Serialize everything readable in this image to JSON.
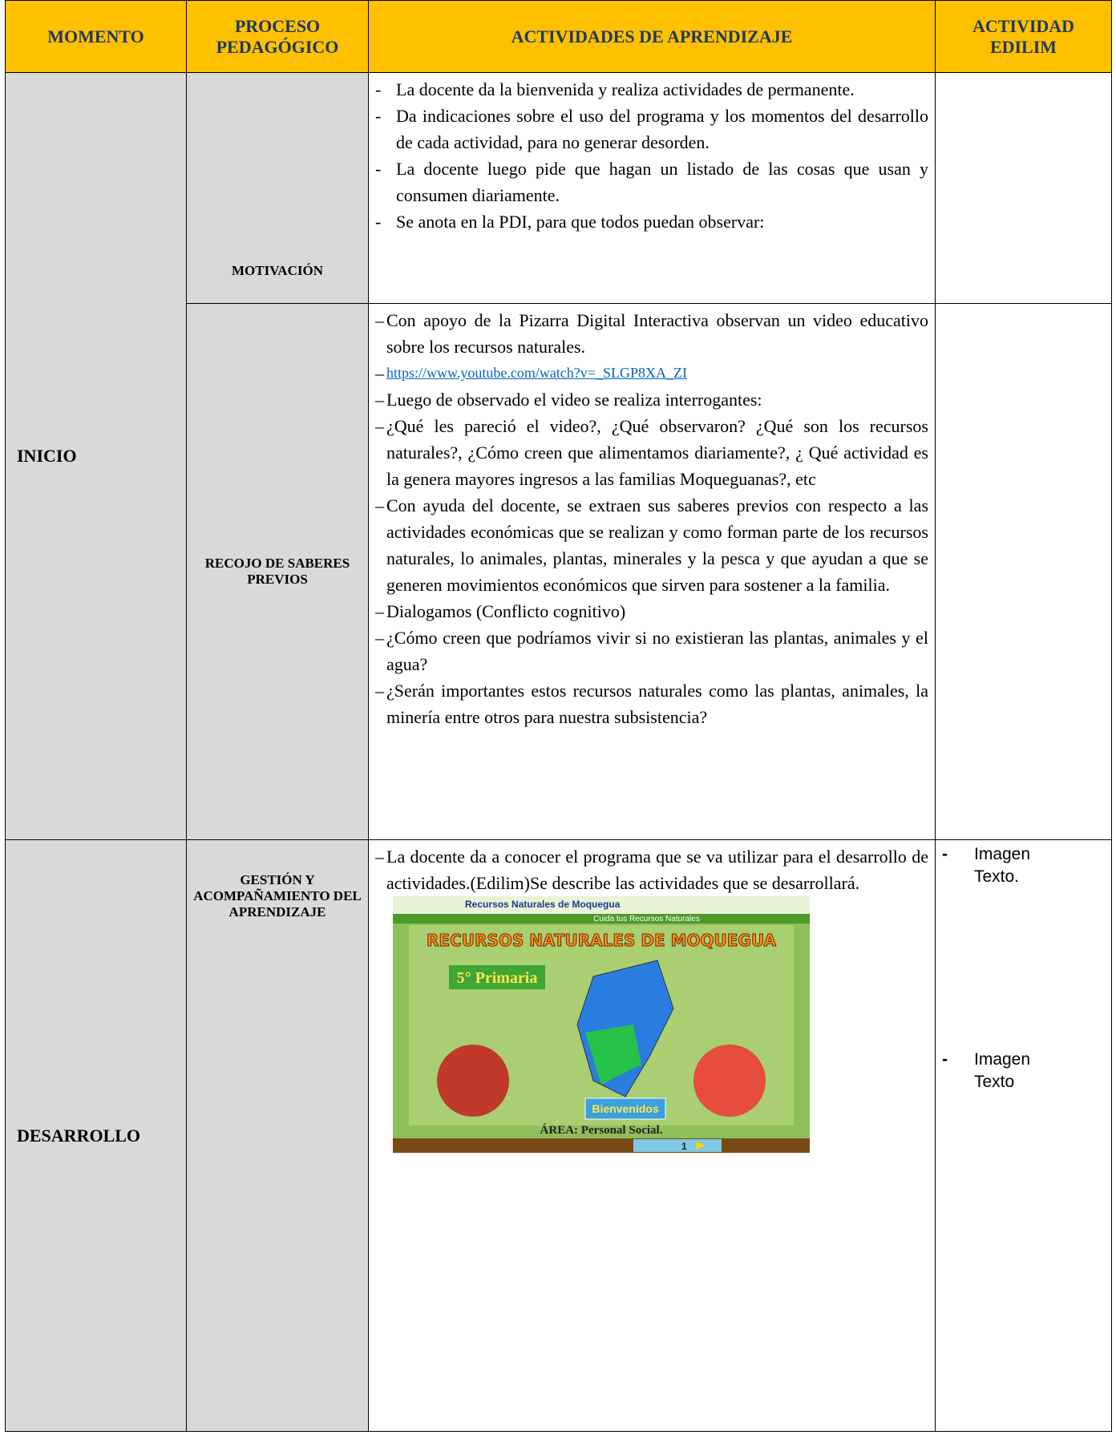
{
  "table": {
    "headers": [
      "MOMENTO",
      "PROCESO PEDAGÓGICO",
      "ACTIVIDADES DE APRENDIZAJE",
      "ACTIVIDAD EDILIM"
    ],
    "rows": [
      {
        "momento": "INICIO",
        "proceso": "MOTIVACIÓN",
        "marker": "-",
        "actividades": [
          "La docente da la bienvenida y realiza actividades de permanente.",
          "Da indicaciones sobre el uso del programa y los momentos del desarrollo de cada actividad, para no generar desorden.",
          "La docente luego pide que hagan un listado de las cosas que usan y consumen diariamente.",
          "Se anota en la PDI, para que todos puedan observar:"
        ]
      },
      {
        "proceso": "RECOJO DE SABERES PREVIOS",
        "marker": "–",
        "link": "https://www.youtube.com/watch?v=_SLGP8XA_ZI",
        "actividades": [
          "Con apoyo de la Pizarra Digital Interactiva observan un video educativo sobre los recursos naturales.",
          "Luego de observado el video se realiza interrogantes:",
          "¿Qué les pareció el video?, ¿Qué observaron? ¿Qué son los recursos naturales?, ¿Cómo creen que alimentamos diariamente?, ¿ Qué actividad es la genera mayores ingresos a las familias Moqueguanas?, etc",
          "Con ayuda del docente, se extraen sus saberes previos con respecto a las actividades económicas que se realizan y como forman parte de los recursos naturales, lo animales, plantas, minerales y la pesca y que ayudan a que se generen movimientos económicos que sirven para sostener a la familia.",
          "Dialogamos (Conflicto cognitivo)",
          "¿Cómo creen que podríamos vivir si no existieran las plantas, animales y el agua?",
          "¿Serán importantes estos recursos naturales como las plantas, animales, la minería entre otros para nuestra subsistencia?"
        ]
      },
      {
        "momento": "DESARROLLO",
        "proceso": "GESTIÓN Y ACOMPAÑAMIENTO DEL APRENDIZAJE",
        "marker": "–",
        "actividades": [
          "La docente  da a conocer el programa que se va utilizar para el desarrollo de actividades.(Edilim)Se describe las actividades que se desarrollará."
        ],
        "imagen": {
          "banner": "Recursos Naturales de Moquegua",
          "subbanner": "Cuida tus Recursos Naturales",
          "title": "RECURSOS NATURALES DE MOQUEGUA",
          "grade": "5° Primaria",
          "button": "Bienvenidos",
          "area": "ÁREA: Personal Social.",
          "page": "1"
        },
        "edilim_marker": "-",
        "edilim": [
          "Imagen Texto.",
          "Imagen Texto"
        ]
      }
    ]
  }
}
